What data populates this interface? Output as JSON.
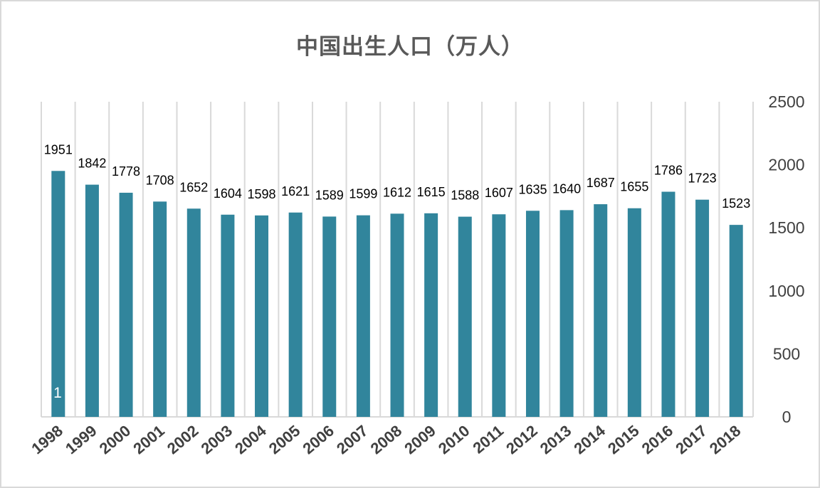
{
  "chart_data": {
    "type": "bar",
    "title": "中国出生人口（万人）",
    "categories": [
      "1998",
      "1999",
      "2000",
      "2001",
      "2002",
      "2003",
      "2004",
      "2005",
      "2006",
      "2007",
      "2008",
      "2009",
      "2010",
      "2011",
      "2012",
      "2013",
      "2014",
      "2015",
      "2016",
      "2017",
      "2018"
    ],
    "values": [
      1951,
      1842,
      1778,
      1708,
      1652,
      1604,
      1598,
      1621,
      1589,
      1599,
      1612,
      1615,
      1588,
      1607,
      1635,
      1640,
      1687,
      1655,
      1786,
      1723,
      1523
    ],
    "ylim": [
      0,
      2500
    ],
    "yticks": [
      "0",
      "500",
      "1000",
      "1500",
      "2000",
      "2500"
    ],
    "y_axis_side": "right",
    "grid": "vertical",
    "bar_color": "#31859C",
    "grid_color": "#d9d9d9",
    "annotation": "1"
  }
}
